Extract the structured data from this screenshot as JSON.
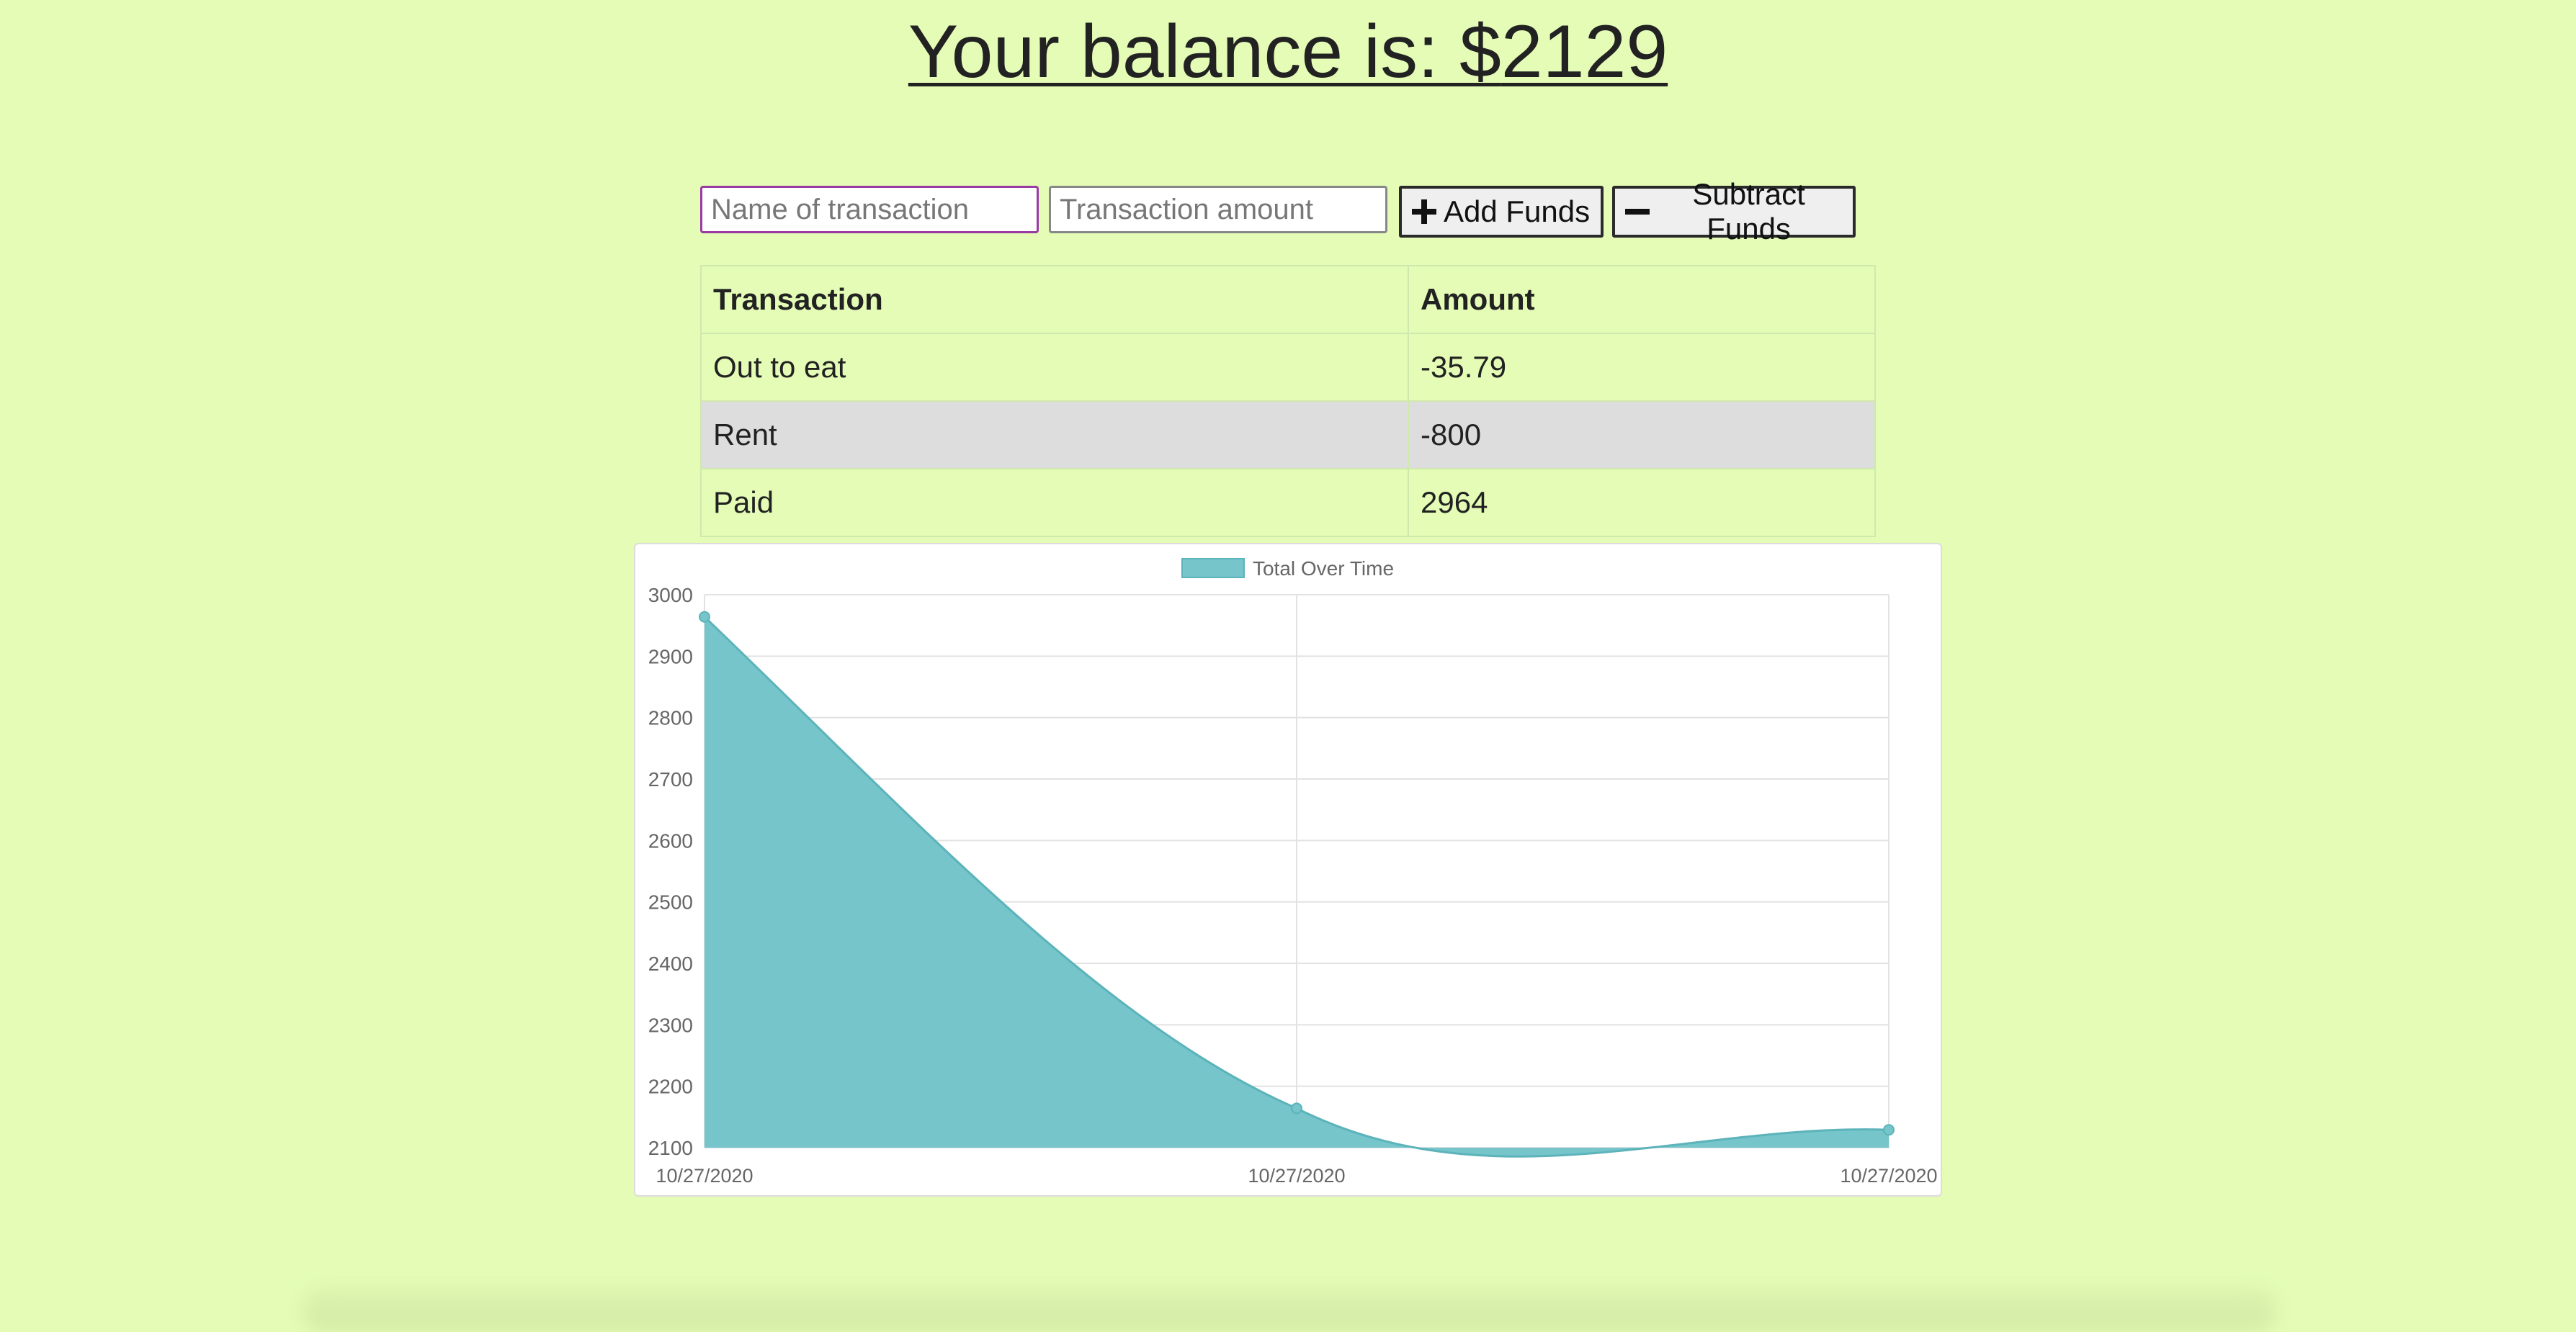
{
  "header": {
    "balance_label": "Your balance is: $",
    "balance_value": "2129"
  },
  "form": {
    "name_placeholder": "Name of transaction",
    "amount_placeholder": "Transaction amount",
    "add_label": "Add Funds",
    "add_icon": "plus-icon",
    "subtract_label": "Subtract Funds",
    "subtract_icon": "minus-icon"
  },
  "table": {
    "headers": [
      "Transaction",
      "Amount"
    ],
    "rows": [
      {
        "name": "Out to eat",
        "amount": "-35.79"
      },
      {
        "name": "Rent",
        "amount": "-800"
      },
      {
        "name": "Paid",
        "amount": "2964"
      }
    ]
  },
  "colors": {
    "page_background": "#e4fcb6",
    "area_fill": "#75c5cb",
    "area_stroke": "#5cb3ba"
  },
  "chart_data": {
    "type": "area",
    "legend": "Total Over Time",
    "legend_position": "top",
    "categories": [
      "10/27/2020",
      "10/27/2020",
      "10/27/2020"
    ],
    "series": [
      {
        "name": "Total Over Time",
        "values": [
          2964,
          2164,
          2129
        ]
      }
    ],
    "ylim": [
      2100,
      3000
    ],
    "yticks": [
      3000,
      2900,
      2800,
      2700,
      2600,
      2500,
      2400,
      2300,
      2200,
      2100
    ],
    "grid": true
  }
}
